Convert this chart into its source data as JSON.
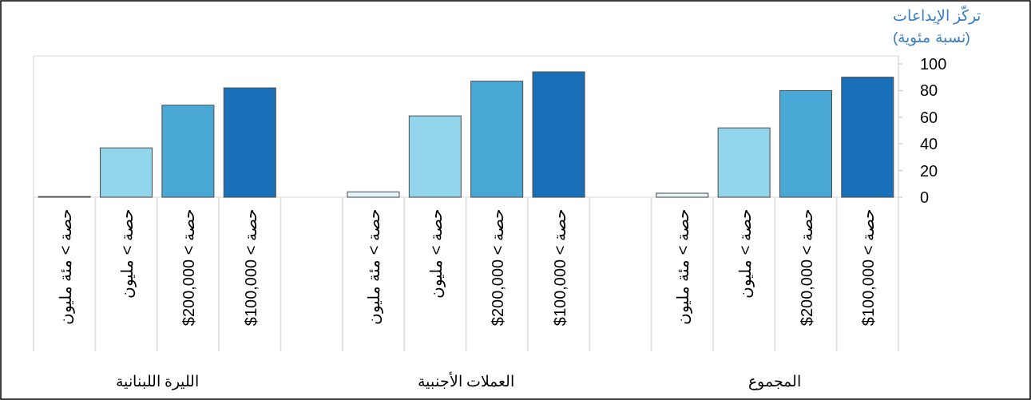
{
  "chart_data": {
    "type": "bar",
    "ylabel": "تركّز الإيداعات\n(نسبة مئوية)",
    "categories": [
      "حصة > مئة مليون",
      "حصة > مليون",
      "حصة > $200,000",
      "حصة > $100,000",
      null,
      "حصة > مئة مليون",
      "حصة > مليون",
      "حصة > $200,000",
      "حصة > $100,000",
      null,
      "حصة > مئة مليون",
      "حصة > مليون",
      "حصة > $200,000",
      "حصة > $100,000"
    ],
    "values": [
      0.5,
      37,
      69,
      82,
      null,
      4,
      61,
      87,
      94,
      null,
      3,
      52,
      80,
      90
    ],
    "colors": [
      "#e3f4fa",
      "#93d5ea",
      "#4aa8d6",
      "#1a70b8",
      null,
      "#e3f4fa",
      "#93d5ea",
      "#4aa8d6",
      "#1a70b8",
      null,
      "#e3f4fa",
      "#93d5ea",
      "#4aa8d6",
      "#1a70b8"
    ],
    "annotations": [
      "الليرة اللبنانية",
      "العملات الأجنبية",
      "المجموع"
    ],
    "ylim": [
      0,
      106
    ],
    "yticks": [
      0,
      20,
      40,
      60,
      80,
      100
    ],
    "grid": false
  }
}
